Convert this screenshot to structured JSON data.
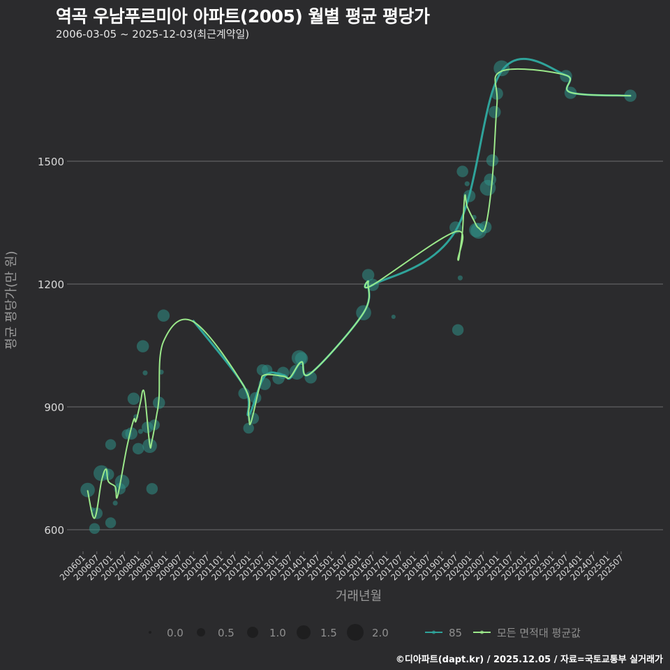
{
  "header": {
    "title": "역곡 우남푸르미아 아파트(2005) 월별 평균 평당가",
    "subtitle": "2006-03-05 ~ 2025-12-03(최근계약일)"
  },
  "caption": "©디아파트(dapt.kr) / 2025.12.05 / 자료=국토교통부 실거래가",
  "colors": {
    "background": "#2b2b2d",
    "grid": "#6e6e6e",
    "bubble": "#2f8f87",
    "series_85": "#2fa39a",
    "series_all": "#9be88a",
    "text": "#d9d9d9",
    "axis_title": "#9a9a9a"
  },
  "legend": {
    "size_title": "",
    "size_items": [
      {
        "label": "0.0",
        "r": 2
      },
      {
        "label": "0.5",
        "r": 6
      },
      {
        "label": "1.0",
        "r": 8
      },
      {
        "label": "1.5",
        "r": 10
      },
      {
        "label": "2.0",
        "r": 12
      }
    ],
    "line_items": [
      {
        "label": "85",
        "color": "#2fa39a"
      },
      {
        "label": "모든 면적대 평균값",
        "color": "#9be88a"
      }
    ]
  },
  "chart_data": {
    "type": "scatter",
    "title": "역곡 우남푸르미아 아파트(2005) 월별 평균 평당가",
    "subtitle": "2006-03-05 ~ 2025-12-03(최근계약일)",
    "xlabel": "거래년월",
    "ylabel": "평균 평당가(만 원)",
    "ylim": [
      560,
      1760
    ],
    "yticks": [
      600,
      900,
      1200,
      1500
    ],
    "xticks": [
      "200601",
      "200607",
      "200701",
      "200707",
      "200801",
      "200807",
      "200901",
      "200907",
      "201001",
      "201007",
      "201101",
      "201107",
      "201201",
      "201207",
      "201301",
      "201307",
      "201401",
      "201407",
      "201501",
      "201507",
      "201601",
      "201607",
      "201701",
      "201707",
      "201801",
      "201807",
      "201901",
      "201907",
      "202001",
      "202007",
      "202101",
      "202107",
      "202201",
      "202207",
      "202301",
      "202307",
      "202401",
      "202407",
      "202501",
      "202507"
    ],
    "grid": true,
    "legend_position": "bottom",
    "bubbles": [
      {
        "ym": "200603",
        "y": 697,
        "size": 1.6
      },
      {
        "ym": "200605",
        "y": 650,
        "size": 0.2
      },
      {
        "ym": "200606",
        "y": 603,
        "size": 1.1
      },
      {
        "ym": "200607",
        "y": 640,
        "size": 1.2
      },
      {
        "ym": "200609",
        "y": 738,
        "size": 1.8
      },
      {
        "ym": "200611",
        "y": 738,
        "size": 0.5
      },
      {
        "ym": "200612",
        "y": 735,
        "size": 1.2
      },
      {
        "ym": "200701",
        "y": 808,
        "size": 1.1
      },
      {
        "ym": "200701",
        "y": 617,
        "size": 1.1
      },
      {
        "ym": "200703",
        "y": 665,
        "size": 0.3
      },
      {
        "ym": "200705",
        "y": 700,
        "size": 1.2
      },
      {
        "ym": "200706",
        "y": 717,
        "size": 1.6
      },
      {
        "ym": "200708",
        "y": 833,
        "size": 1.0
      },
      {
        "ym": "200710",
        "y": 835,
        "size": 1.3
      },
      {
        "ym": "200711",
        "y": 920,
        "size": 1.3
      },
      {
        "ym": "200712",
        "y": 876,
        "size": 0.3
      },
      {
        "ym": "200801",
        "y": 798,
        "size": 1.2
      },
      {
        "ym": "200802",
        "y": 840,
        "size": 0.3
      },
      {
        "ym": "200803",
        "y": 1048,
        "size": 1.3
      },
      {
        "ym": "200804",
        "y": 983,
        "size": 0.3
      },
      {
        "ym": "200805",
        "y": 850,
        "size": 1.2
      },
      {
        "ym": "200806",
        "y": 805,
        "size": 1.6
      },
      {
        "ym": "200807",
        "y": 700,
        "size": 1.2
      },
      {
        "ym": "200808",
        "y": 856,
        "size": 1.1
      },
      {
        "ym": "200810",
        "y": 910,
        "size": 1.3
      },
      {
        "ym": "200811",
        "y": 985,
        "size": 0.3
      },
      {
        "ym": "200812",
        "y": 1123,
        "size": 1.3
      },
      {
        "ym": "201111",
        "y": 933,
        "size": 1.2
      },
      {
        "ym": "201201",
        "y": 848,
        "size": 1.1
      },
      {
        "ym": "201203",
        "y": 872,
        "size": 1.2
      },
      {
        "ym": "201204",
        "y": 922,
        "size": 1.2
      },
      {
        "ym": "201207",
        "y": 990,
        "size": 1.2
      },
      {
        "ym": "201208",
        "y": 956,
        "size": 1.3
      },
      {
        "ym": "201209",
        "y": 990,
        "size": 1.1
      },
      {
        "ym": "201302",
        "y": 970,
        "size": 1.3
      },
      {
        "ym": "201304",
        "y": 983,
        "size": 1.3
      },
      {
        "ym": "201310",
        "y": 985,
        "size": 1.7
      },
      {
        "ym": "201311",
        "y": 1020,
        "size": 1.7
      },
      {
        "ym": "201312",
        "y": 1018,
        "size": 1.4
      },
      {
        "ym": "201404",
        "y": 972,
        "size": 1.3
      },
      {
        "ym": "201603",
        "y": 1130,
        "size": 1.7
      },
      {
        "ym": "201605",
        "y": 1222,
        "size": 1.3
      },
      {
        "ym": "201607",
        "y": 1198,
        "size": 1.3
      },
      {
        "ym": "201704",
        "y": 1120,
        "size": 0.2
      },
      {
        "ym": "201907",
        "y": 1338,
        "size": 1.3
      },
      {
        "ym": "201908",
        "y": 1088,
        "size": 1.2
      },
      {
        "ym": "201909",
        "y": 1215,
        "size": 0.3
      },
      {
        "ym": "201910",
        "y": 1475,
        "size": 1.2
      },
      {
        "ym": "201912",
        "y": 1445,
        "size": 0.3
      },
      {
        "ym": "202001",
        "y": 1415,
        "size": 1.3
      },
      {
        "ym": "202003",
        "y": 1363,
        "size": 0.3
      },
      {
        "ym": "202004",
        "y": 1332,
        "size": 1.6
      },
      {
        "ym": "202005",
        "y": 1330,
        "size": 1.8
      },
      {
        "ym": "202008",
        "y": 1339,
        "size": 1.3
      },
      {
        "ym": "202009",
        "y": 1435,
        "size": 1.8
      },
      {
        "ym": "202010",
        "y": 1455,
        "size": 1.3
      },
      {
        "ym": "202011",
        "y": 1502,
        "size": 1.3
      },
      {
        "ym": "202012",
        "y": 1620,
        "size": 1.3
      },
      {
        "ym": "202101",
        "y": 1665,
        "size": 1.3
      },
      {
        "ym": "202103",
        "y": 1727,
        "size": 1.8
      },
      {
        "ym": "202307",
        "y": 1708,
        "size": 1.3
      },
      {
        "ym": "202309",
        "y": 1667,
        "size": 1.3
      },
      {
        "ym": "202511",
        "y": 1660,
        "size": 1.3
      }
    ],
    "series": [
      {
        "name": "85",
        "color": "#2fa39a",
        "points": [
          [
            "201001",
            1110
          ],
          [
            "201111",
            950
          ],
          [
            "201201",
            880
          ],
          [
            "201208",
            975
          ],
          [
            "201304",
            978
          ],
          [
            "201307",
            970
          ],
          [
            "201312",
            1010
          ],
          [
            "201404",
            982
          ],
          [
            "201603",
            1130
          ],
          [
            "201605",
            1205
          ],
          [
            "201607",
            1198
          ],
          [
            "201907",
            1330
          ],
          [
            "202103",
            1720
          ],
          [
            "202307",
            1710
          ],
          [
            "202309",
            1668
          ],
          [
            "202511",
            1660
          ]
        ]
      },
      {
        "name": "모든 면적대 평균값",
        "color": "#9be88a",
        "points": [
          [
            "200603",
            695
          ],
          [
            "200606",
            628
          ],
          [
            "200609",
            718
          ],
          [
            "200611",
            748
          ],
          [
            "200612",
            718
          ],
          [
            "200703",
            705
          ],
          [
            "200704",
            682
          ],
          [
            "200708",
            800
          ],
          [
            "200711",
            868
          ],
          [
            "200712",
            865
          ],
          [
            "200802",
            912
          ],
          [
            "200803",
            940
          ],
          [
            "200804",
            920
          ],
          [
            "200806",
            808
          ],
          [
            "200807",
            818
          ],
          [
            "200809",
            880
          ],
          [
            "200810",
            920
          ],
          [
            "200812",
            1060
          ],
          [
            "201001",
            1108
          ],
          [
            "201111",
            950
          ],
          [
            "201201",
            880
          ],
          [
            "201202",
            862
          ],
          [
            "201206",
            955
          ],
          [
            "201208",
            978
          ],
          [
            "201304",
            975
          ],
          [
            "201307",
            972
          ],
          [
            "201312",
            1010
          ],
          [
            "201404",
            982
          ],
          [
            "201603",
            1130
          ],
          [
            "201605",
            1205
          ],
          [
            "201607",
            1198
          ],
          [
            "201907",
            1328
          ],
          [
            "201908",
            1260
          ],
          [
            "201909",
            1285
          ],
          [
            "201910",
            1330
          ],
          [
            "201911",
            1415
          ],
          [
            "201912",
            1390
          ],
          [
            "202003",
            1355
          ],
          [
            "202005",
            1337
          ],
          [
            "202008",
            1340
          ],
          [
            "202011",
            1460
          ],
          [
            "202101",
            1640
          ],
          [
            "202103",
            1720
          ],
          [
            "202307",
            1710
          ],
          [
            "202309",
            1668
          ],
          [
            "202511",
            1660
          ]
        ]
      }
    ]
  }
}
